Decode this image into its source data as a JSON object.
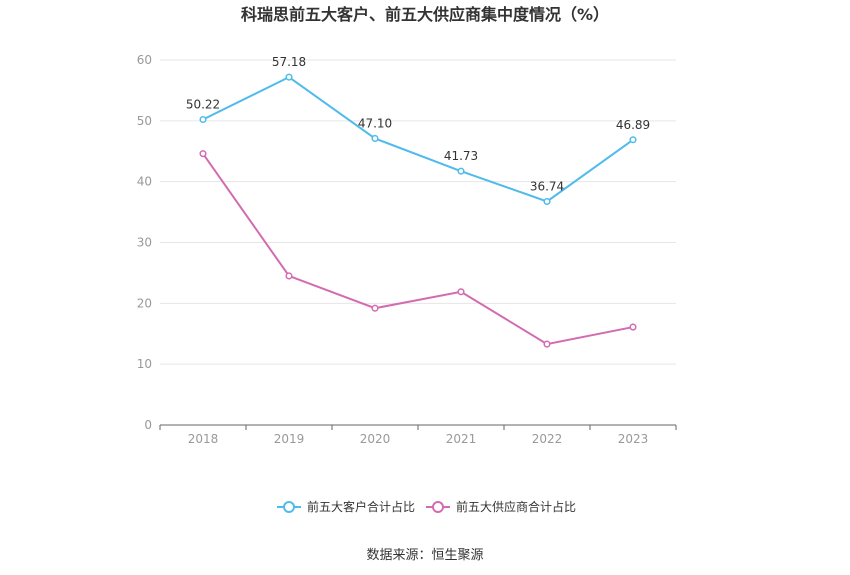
{
  "chart_data": {
    "type": "line",
    "title": "科瑞思前五大客户、前五大供应商集中度情况（%）",
    "x": [
      "2018",
      "2019",
      "2020",
      "2021",
      "2022",
      "2023"
    ],
    "y_ticks": [
      "0",
      "10",
      "20",
      "30",
      "40",
      "50",
      "60"
    ],
    "ylim": [
      0,
      60
    ],
    "grid": true,
    "legend_position": "bottom",
    "series": [
      {
        "name": "前五大客户合计占比",
        "color": "#4fbbec",
        "values": [
          50.22,
          57.18,
          47.1,
          41.73,
          36.74,
          46.89
        ],
        "labels": [
          "50.22",
          "57.18",
          "47.10",
          "41.73",
          "36.74",
          "46.89"
        ]
      },
      {
        "name": "前五大供应商合计占比",
        "color": "#d36bb0",
        "values": [
          44.6,
          24.5,
          19.2,
          21.9,
          13.3,
          16.1
        ]
      }
    ],
    "source": "数据来源：恒生聚源"
  }
}
